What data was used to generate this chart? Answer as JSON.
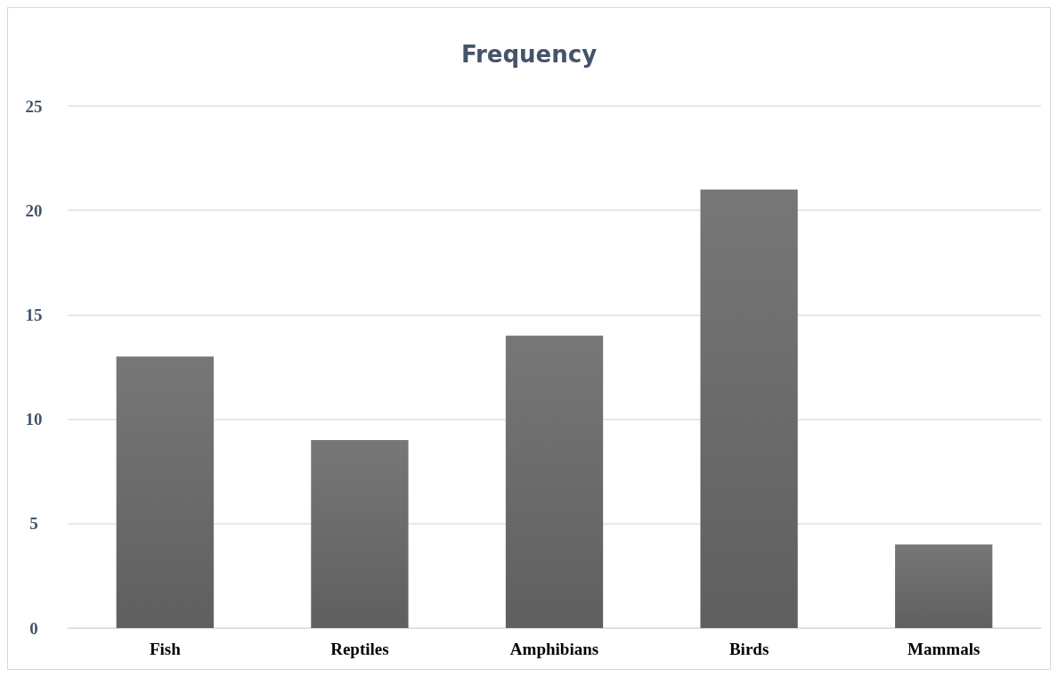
{
  "chart_data": {
    "type": "bar",
    "title": "Frequency",
    "categories": [
      "Fish",
      "Reptiles",
      "Amphibians",
      "Birds",
      "Mammals"
    ],
    "values": [
      13,
      9,
      14,
      21,
      4
    ],
    "color": "#5f5f5f",
    "ylim": [
      0,
      25
    ],
    "yticks": [
      0,
      5,
      10,
      15,
      20,
      25
    ],
    "grid": "y"
  }
}
